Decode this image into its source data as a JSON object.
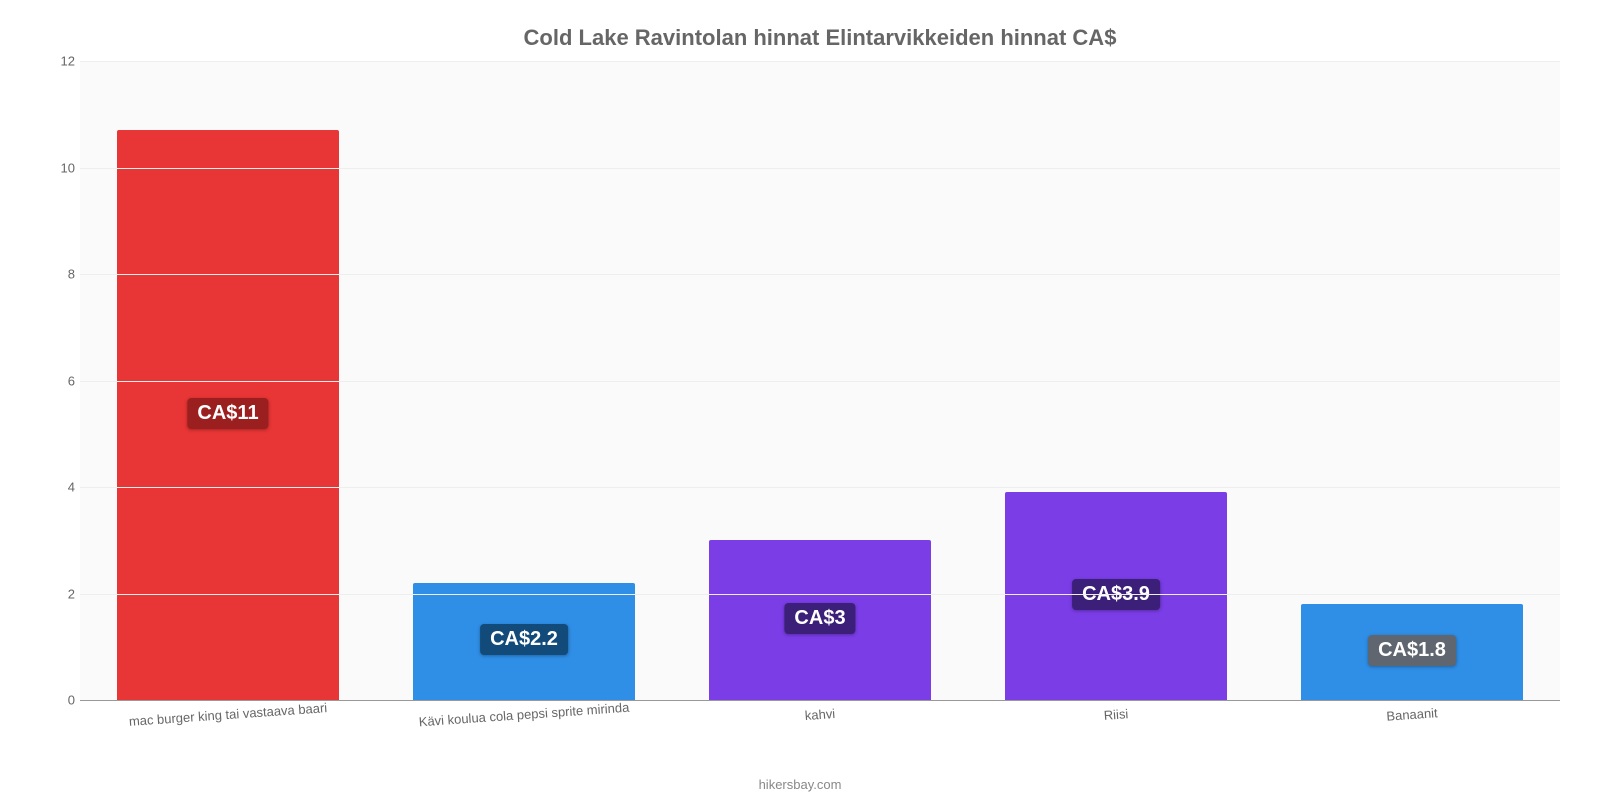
{
  "chart": {
    "type": "bar",
    "title": "Cold Lake Ravintolan hinnat Elintarvikkeiden hinnat CA$",
    "title_color": "#666666",
    "title_fontsize": 22,
    "background_color": "#fafafa",
    "grid_color": "#eeeeee",
    "axis_color": "#999999",
    "ylim": [
      0,
      12
    ],
    "ytick_step": 2,
    "yticks": [
      0,
      2,
      4,
      6,
      8,
      10,
      12
    ],
    "bar_width_pct": 75,
    "label_fontsize": 13,
    "value_label_fontsize": 20,
    "categories": [
      "mac burger king tai vastaava baari",
      "Kävi koulua cola pepsi sprite mirinda",
      "kahvi",
      "Riisi",
      "Banaanit"
    ],
    "values": [
      10.7,
      2.2,
      3.0,
      3.9,
      1.8
    ],
    "value_labels": [
      "CA$11",
      "CA$2.2",
      "CA$3",
      "CA$3.9",
      "CA$1.8"
    ],
    "bar_colors": [
      "#e83535",
      "#2f8ee6",
      "#7a3de6",
      "#7a3de6",
      "#2f8ee6"
    ],
    "label_bg_colors": [
      "#9c1f1f",
      "#124a7a",
      "#3c1f78",
      "#3c1f78",
      "#124a7a"
    ],
    "label_special_bg": {
      "4": "#5f6670"
    },
    "footer": "hikersbay.com"
  }
}
